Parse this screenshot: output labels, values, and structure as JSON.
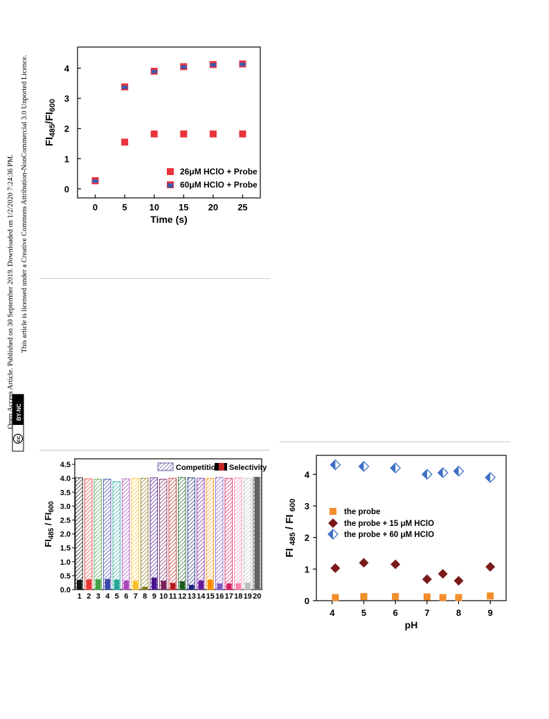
{
  "margin_notice": {
    "line1": "Open Access Article. Published on 30 September 2019. Downloaded on 1/2/2020 7:24:36 PM.",
    "line2": "This article is licensed under a Creative Commons Attribution-NonCommercial 3.0 Unported Licence.",
    "badge_cc": "cc",
    "badge_text": "BY-NC"
  },
  "chart_data": [
    {
      "type": "scatter",
      "xlabel": "Time (s)",
      "ylabel_main": "FI",
      "ylabel_sub1": "485",
      "ylabel_mid": "/FI",
      "ylabel_sub2": "600",
      "xlim": [
        -3,
        28
      ],
      "ylim": [
        -0.3,
        4.7
      ],
      "xticks": [
        0,
        5,
        10,
        15,
        20,
        25
      ],
      "yticks": [
        0,
        1,
        2,
        3,
        4
      ],
      "legend_position": "bottom-right",
      "series": [
        {
          "name": "26μM HClO + Probe",
          "color": "#e8333a",
          "x": [
            0,
            5,
            10,
            15,
            20,
            25
          ],
          "y": [
            0.27,
            1.55,
            1.82,
            1.82,
            1.82,
            1.82
          ]
        },
        {
          "name": "60μM HClO + Probe",
          "color": "#3b5bb0",
          "x": [
            0,
            5,
            10,
            15,
            20,
            25
          ],
          "y": [
            0.27,
            3.38,
            3.9,
            4.05,
            4.12,
            4.14
          ]
        }
      ]
    },
    {
      "type": "bar",
      "ylabel_main": "FI",
      "ylabel_sub1": "485",
      "ylabel_mid": " / FI",
      "ylabel_sub2": "600",
      "ylim": [
        0,
        4.7
      ],
      "yticks": [
        "0.0",
        "0.5",
        "1.0",
        "1.5",
        "2.0",
        "2.5",
        "3.0",
        "3.5",
        "4.0",
        "4.5"
      ],
      "categories": [
        "1",
        "2",
        "3",
        "4",
        "5",
        "6",
        "7",
        "8",
        "9",
        "10",
        "11",
        "12",
        "13",
        "14",
        "15",
        "16",
        "17",
        "18",
        "19",
        "20"
      ],
      "legend_position": "top-right",
      "series": [
        {
          "name": "Competition",
          "values": [
            4.02,
            3.98,
            3.97,
            3.97,
            3.88,
            3.98,
            4.0,
            4.0,
            4.02,
            3.97,
            4.0,
            4.03,
            4.02,
            4.0,
            4.0,
            4.03,
            4.0,
            4.02,
            4.0,
            4.03
          ]
        },
        {
          "name": "Selectivity",
          "values": [
            0.35,
            0.37,
            0.37,
            0.38,
            0.36,
            0.33,
            0.32,
            0.1,
            0.43,
            0.32,
            0.24,
            0.3,
            0.17,
            0.33,
            0.36,
            0.22,
            0.22,
            0.23,
            0.25,
            4.05
          ]
        }
      ],
      "bar_colors": [
        "#111111",
        "#e53935",
        "#43a047",
        "#3949ab",
        "#26a69a",
        "#ab47bc",
        "#fbc02d",
        "#827717",
        "#4a148c",
        "#7b1f5a",
        "#b71c1c",
        "#1b5e20",
        "#1a237e",
        "#6a1b9a",
        "#fb8c00",
        "#7e57c2",
        "#d81b60",
        "#ff80ab",
        "#bdbdbd",
        "#616161"
      ]
    },
    {
      "type": "scatter",
      "xlabel": "pH",
      "ylabel_main": "FI ",
      "ylabel_sub1": "485",
      "ylabel_mid": " / FI ",
      "ylabel_sub2": "600",
      "xlim": [
        3.5,
        9.5
      ],
      "ylim": [
        0,
        4.6
      ],
      "xticks": [
        4,
        5,
        6,
        7,
        8,
        9
      ],
      "yticks": [
        0,
        1,
        2,
        3,
        4
      ],
      "legend_position": "center-left",
      "series": [
        {
          "name": "the probe",
          "color": "#f28e2b",
          "marker": "square",
          "x": [
            4.1,
            5,
            6,
            7,
            7.5,
            8,
            9
          ],
          "y": [
            0.1,
            0.13,
            0.13,
            0.12,
            0.1,
            0.1,
            0.15
          ]
        },
        {
          "name": "the probe + 15 μM HClO",
          "color": "#7b1a1a",
          "marker": "diamond",
          "x": [
            4.1,
            5,
            6,
            7,
            7.5,
            8,
            9
          ],
          "y": [
            1.03,
            1.2,
            1.15,
            0.68,
            0.85,
            0.63,
            1.07
          ]
        },
        {
          "name": "the probe + 60 μM HClO",
          "color": "#3d6fc4",
          "marker": "halfdiamond",
          "x": [
            4.1,
            5,
            6,
            7,
            7.5,
            8,
            9
          ],
          "y": [
            4.3,
            4.25,
            4.2,
            4.0,
            4.05,
            4.1,
            3.9
          ]
        }
      ]
    }
  ]
}
